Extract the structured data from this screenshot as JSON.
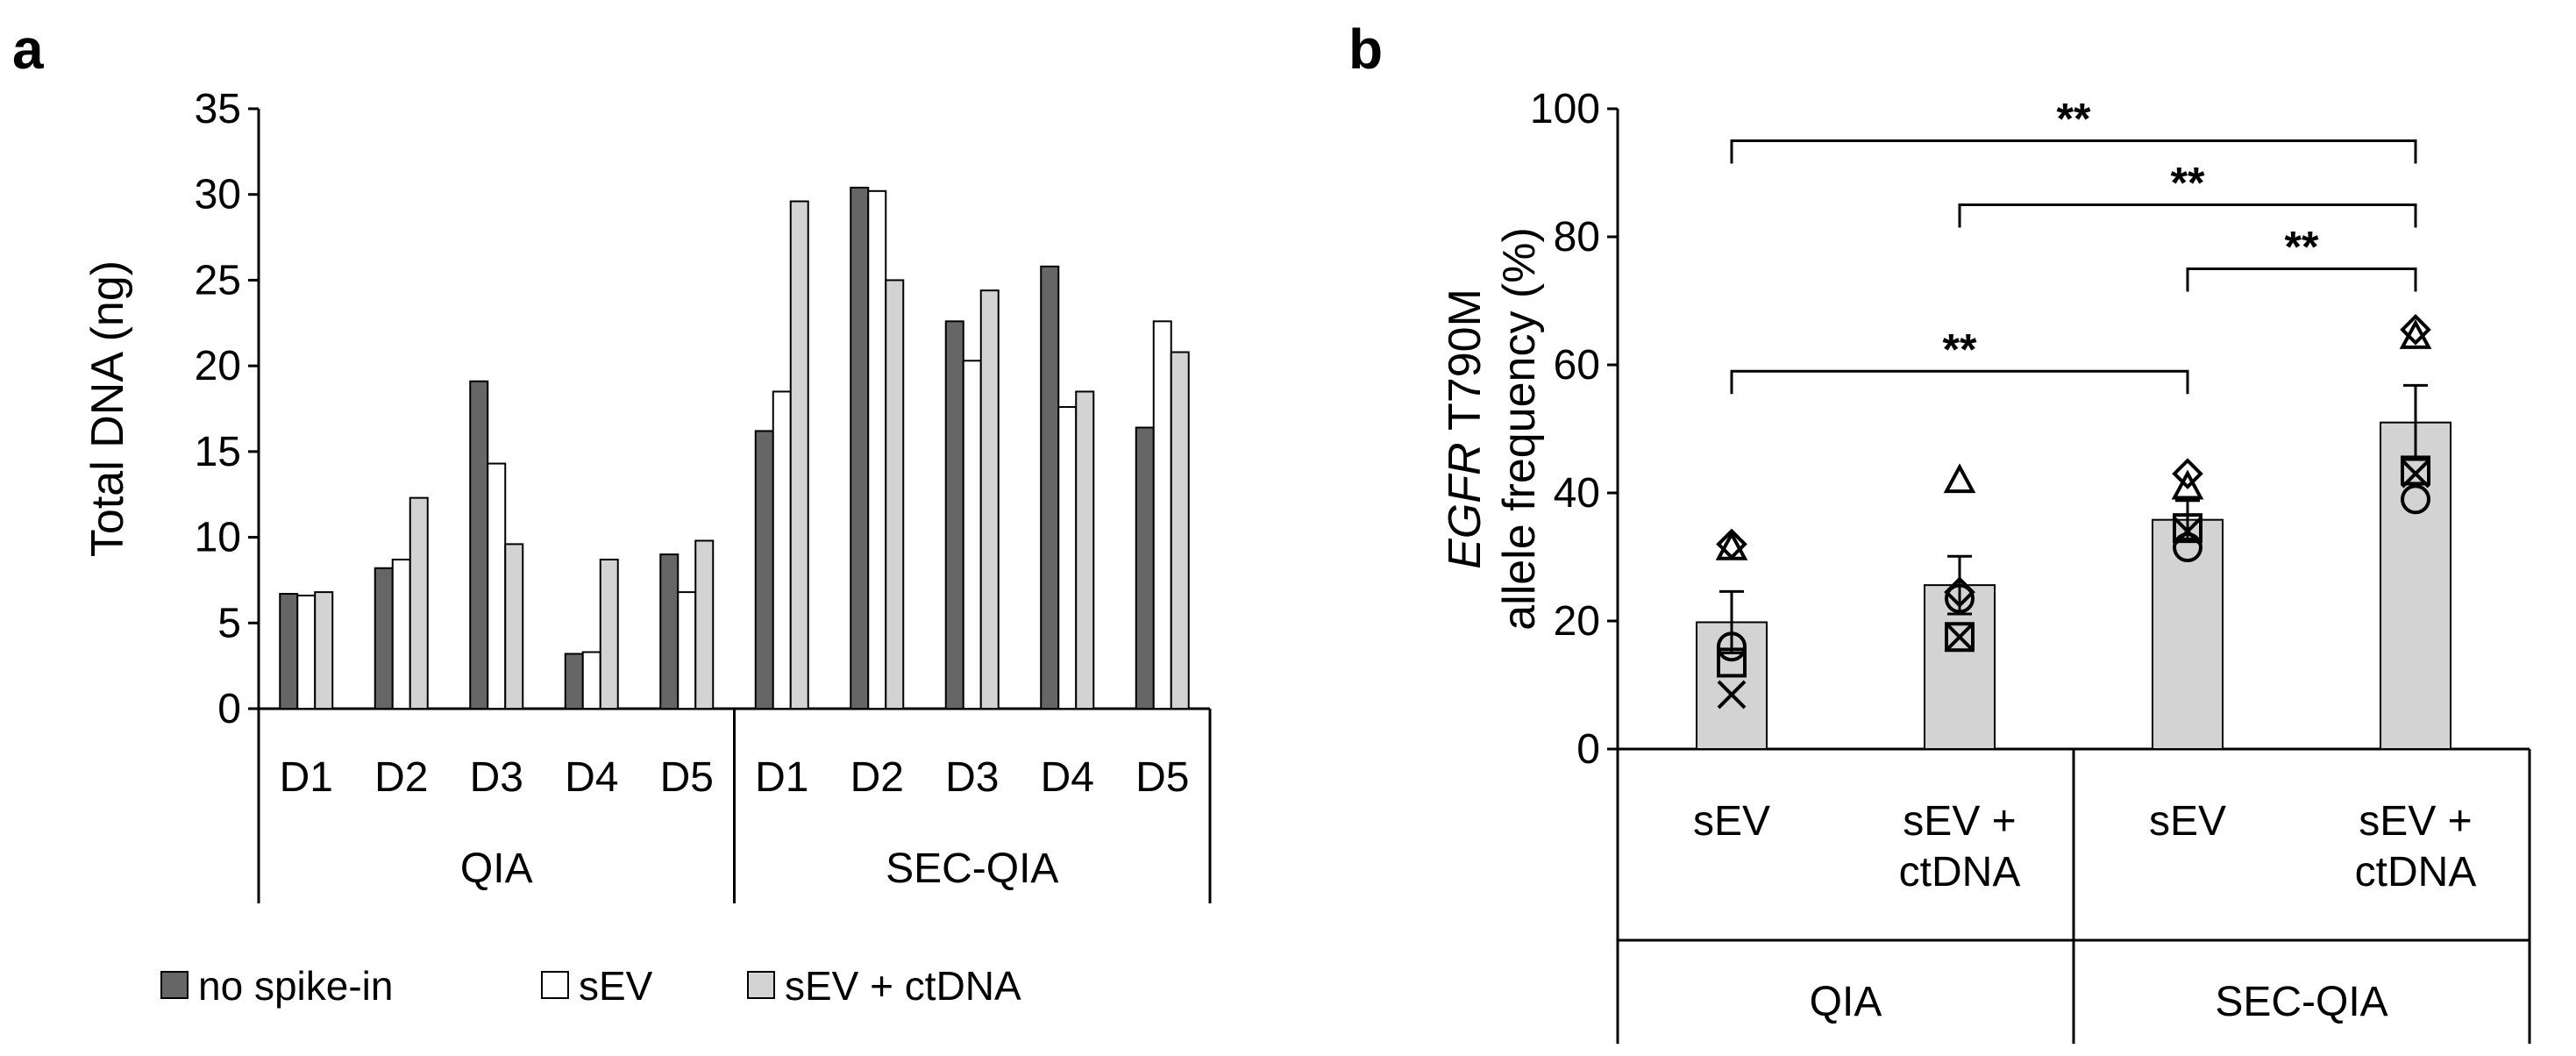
{
  "chart_data": [
    {
      "panel": "a",
      "type": "bar",
      "title": "",
      "ylabel": "Total DNA (ng)",
      "ylim": [
        0,
        35
      ],
      "yticks": [
        0,
        5,
        10,
        15,
        20,
        25,
        30,
        35
      ],
      "categories": [
        "D1",
        "D2",
        "D3",
        "D4",
        "D5",
        "D1",
        "D2",
        "D3",
        "D4",
        "D5"
      ],
      "groups": [
        {
          "label": "QIA",
          "count": 5
        },
        {
          "label": "SEC-QIA",
          "count": 5
        }
      ],
      "series": [
        {
          "name": "no spike-in",
          "color": "#666666",
          "values": [
            6.7,
            8.2,
            19.1,
            3.2,
            9.0,
            16.2,
            30.4,
            22.6,
            25.8,
            16.4
          ]
        },
        {
          "name": "sEV",
          "color": "#ffffff",
          "values": [
            6.6,
            8.7,
            14.3,
            3.3,
            6.8,
            18.5,
            30.2,
            20.3,
            17.6,
            22.6
          ]
        },
        {
          "name": "sEV + ctDNA",
          "color": "#d3d3d3",
          "values": [
            6.8,
            12.3,
            9.6,
            8.7,
            9.8,
            29.6,
            25.0,
            24.4,
            18.5,
            20.8
          ]
        }
      ],
      "legend_position": "bottom"
    },
    {
      "panel": "b",
      "type": "bar",
      "ylabel_italic": "EGFR",
      "ylabel_rest": " T790M",
      "ylabel_line2": "allele frequency (%)",
      "ylim": [
        0,
        100
      ],
      "yticks": [
        0,
        20,
        40,
        60,
        80,
        100
      ],
      "categories": [
        {
          "line1": "sEV",
          "line2": ""
        },
        {
          "line1": "sEV +",
          "line2": "ctDNA"
        },
        {
          "line1": "sEV",
          "line2": ""
        },
        {
          "line1": "sEV +",
          "line2": "ctDNA"
        }
      ],
      "groups": [
        {
          "label": "QIA",
          "count": 2
        },
        {
          "label": "SEC-QIA",
          "count": 2
        }
      ],
      "values": [
        19.8,
        25.6,
        35.8,
        51.0
      ],
      "errors": [
        4.8,
        4.5,
        3.0,
        5.8
      ],
      "bar_color": "#d3d3d3",
      "points": [
        [
          {
            "m": "diamond",
            "v": 32.0
          },
          {
            "m": "triangle",
            "v": 31.5
          },
          {
            "m": "circle",
            "v": 16.0
          },
          {
            "m": "square",
            "v": 13.5
          },
          {
            "m": "x",
            "v": 8.5
          }
        ],
        [
          {
            "m": "triangle",
            "v": 42.0
          },
          {
            "m": "diamond",
            "v": 24.5
          },
          {
            "m": "circle",
            "v": 23.5
          },
          {
            "m": "square",
            "v": 17.5
          },
          {
            "m": "x",
            "v": 17.5
          }
        ],
        [
          {
            "m": "diamond",
            "v": 43.0
          },
          {
            "m": "triangle",
            "v": 41.0
          },
          {
            "m": "square",
            "v": 34.5
          },
          {
            "m": "x",
            "v": 34.0
          },
          {
            "m": "circle",
            "v": 31.5
          }
        ],
        [
          {
            "m": "diamond",
            "v": 65.5
          },
          {
            "m": "triangle",
            "v": 64.5
          },
          {
            "m": "square",
            "v": 43.5
          },
          {
            "m": "x",
            "v": 43.0
          },
          {
            "m": "circle",
            "v": 39.0
          }
        ]
      ],
      "significance": [
        {
          "from": 0,
          "to": 3,
          "y": 95,
          "label": "**"
        },
        {
          "from": 1,
          "to": 3,
          "y": 85,
          "label": "**"
        },
        {
          "from": 2,
          "to": 3,
          "y": 75,
          "label": "**"
        },
        {
          "from": 0,
          "to": 2,
          "y": 59,
          "label": "**"
        }
      ]
    }
  ],
  "labels": {
    "panel_a": "a",
    "panel_b": "b"
  }
}
